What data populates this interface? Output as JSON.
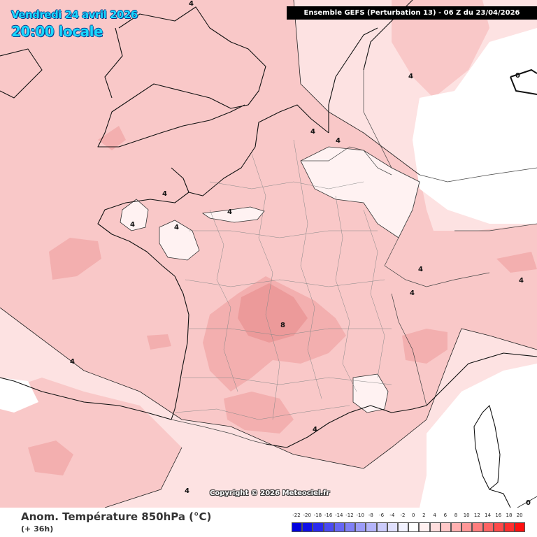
{
  "header": {
    "date_title": "Vendredi 24 avril 2026",
    "local_time": "20:00 locale",
    "run_banner": "Ensemble GEFS  (Perturbation 13)  -  06 Z du 23/04/2026"
  },
  "copyright": "Copyright © 2026 Meteociel.fr",
  "footer": {
    "parameter_title": "Anom. Température 850hPa (°C)",
    "lead_time": "(+ 36h)"
  },
  "contour_labels": [
    "4",
    "4",
    "4",
    "4",
    "4",
    "4",
    "4",
    "4",
    "4",
    "4",
    "4",
    "4",
    "8",
    "4",
    "0",
    "0"
  ],
  "legend": {
    "labels": [
      "-22",
      "-20",
      "-18",
      "-16",
      "-14",
      "-12",
      "-10",
      "-8",
      "-6",
      "-4",
      "-2",
      "0",
      "2",
      "4",
      "6",
      "8",
      "10",
      "12",
      "14",
      "16",
      "18",
      "20"
    ],
    "colors": [
      "#0000dd",
      "#1010e6",
      "#2a2aee",
      "#4a4af2",
      "#6666f4",
      "#8080f6",
      "#9c9cf8",
      "#b4b4fa",
      "#ccccfc",
      "#e0e0fd",
      "#f2f2ff",
      "#ffffff",
      "#fff0f0",
      "#ffdede",
      "#ffc8c8",
      "#ffb0b0",
      "#ff9898",
      "#ff7e7e",
      "#ff6464",
      "#ff4a4a",
      "#ff2e2e",
      "#ff0f0f"
    ]
  },
  "colors": {
    "anomaly_0_2": "#fff0f0",
    "anomaly_2_4": "#fde2e2",
    "anomaly_4_6": "#f9c8c8",
    "anomaly_6_8": "#f3afaf",
    "anomaly_8_10": "#ec9a9a",
    "negative_light": "#ffffff"
  }
}
